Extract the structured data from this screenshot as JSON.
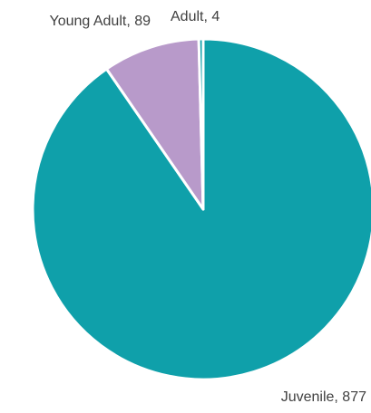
{
  "chart_data": {
    "type": "pie",
    "title": "",
    "labels": [
      "Juvenile",
      "Young Adult",
      "Adult"
    ],
    "values": [
      877,
      89,
      4
    ],
    "data_labels": [
      "Juvenile,  877",
      "Young Adult, 89",
      "Adult, 4"
    ],
    "colors": [
      "#0FA0AA",
      "#B89ACA",
      "#0FA0AA"
    ],
    "start_angle_deg": 0,
    "direction": "clockwise",
    "slice_border": "#ffffff",
    "legend": "none"
  }
}
